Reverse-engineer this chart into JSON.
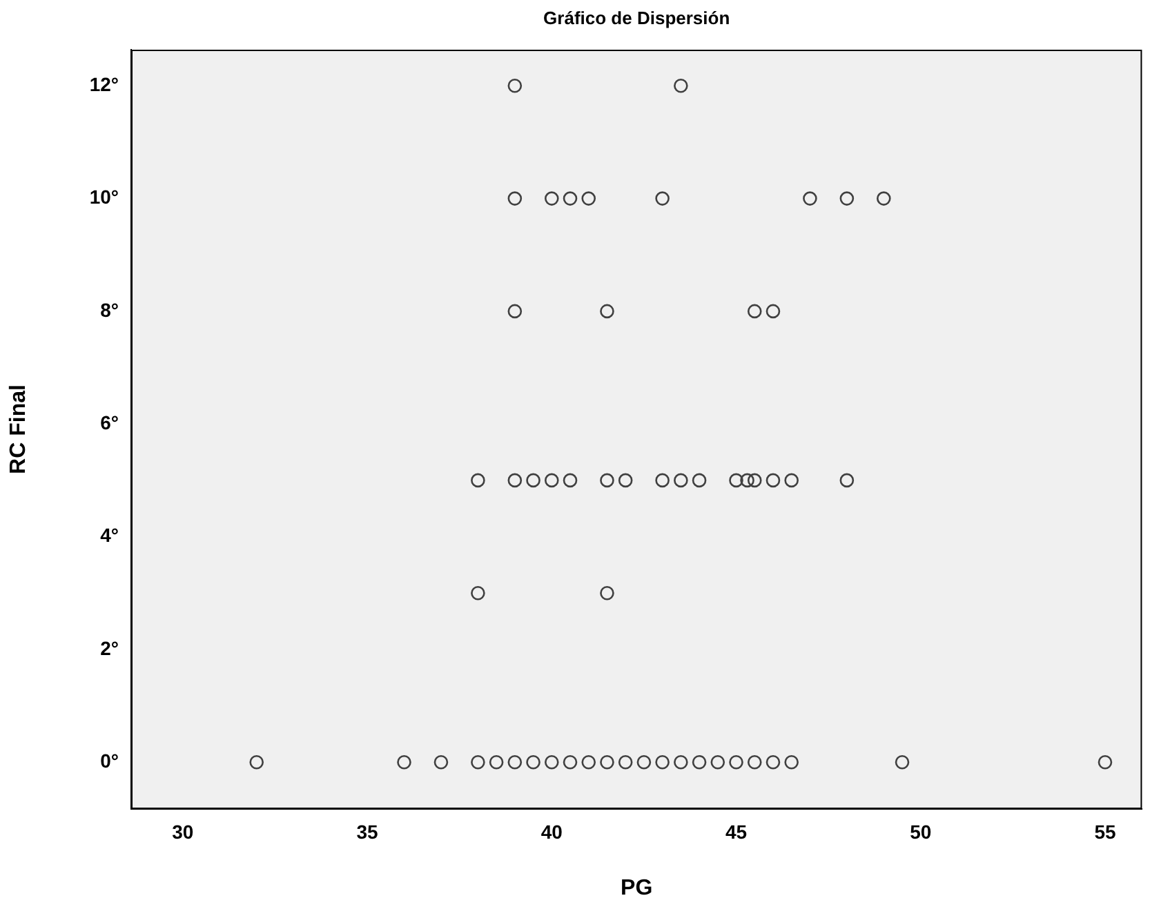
{
  "chart_data": {
    "type": "scatter",
    "title": "Gráfico de Dispersión",
    "xlabel": "PG",
    "ylabel": "RC Final",
    "xlim": [
      28.6,
      56.0
    ],
    "xticks": [
      30,
      35,
      40,
      45,
      50,
      55
    ],
    "ylim": [
      -0.83,
      12.64
    ],
    "yticks": [
      {
        "value": 0,
        "label": "0°"
      },
      {
        "value": 2,
        "label": "2°"
      },
      {
        "value": 4,
        "label": "4°"
      },
      {
        "value": 6,
        "label": "6°"
      },
      {
        "value": 8,
        "label": "8°"
      },
      {
        "value": 10,
        "label": "10°"
      },
      {
        "value": 12,
        "label": "12°"
      }
    ],
    "grid": false,
    "legend": false,
    "marker": "circle",
    "series": [
      {
        "color": "#404040",
        "x": [
          39,
          43.5,
          39,
          40,
          40.5,
          41,
          43,
          47,
          48,
          49,
          39,
          41.5,
          45.5,
          46,
          38,
          39,
          39.5,
          40,
          40.5,
          41.5,
          42,
          43,
          43.5,
          44,
          45,
          45.3,
          45.5,
          46,
          46.5,
          48,
          38,
          41.5,
          32,
          36,
          37,
          38,
          38.5,
          39,
          39.5,
          40,
          40.5,
          41,
          41.5,
          42,
          42.5,
          43,
          43.5,
          44,
          44.5,
          45,
          45.5,
          46,
          46.5,
          49.5,
          55
        ],
        "values": [
          12,
          12,
          10,
          10,
          10,
          10,
          10,
          10,
          10,
          10,
          8,
          8,
          8,
          8,
          5,
          5,
          5,
          5,
          5,
          5,
          5,
          5,
          5,
          5,
          5,
          5,
          5,
          5,
          5,
          5,
          3,
          3,
          0,
          0,
          0,
          0,
          0,
          0,
          0,
          0,
          0,
          0,
          0,
          0,
          0,
          0,
          0,
          0,
          0,
          0,
          0,
          0,
          0,
          0,
          0
        ]
      }
    ]
  }
}
